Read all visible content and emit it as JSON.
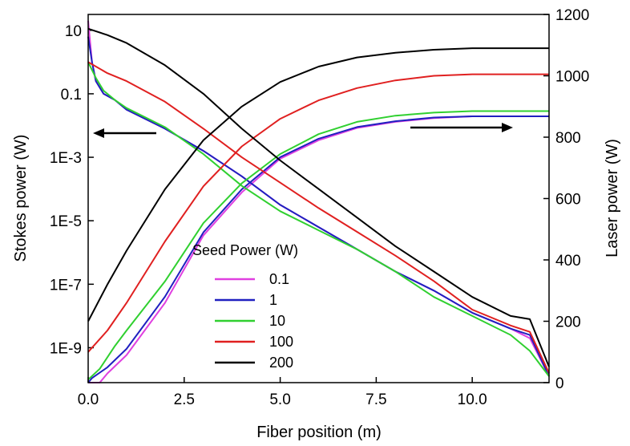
{
  "chart_data": {
    "type": "line",
    "xlabel": "Fiber position (m)",
    "ylabel_left": "Stokes power (W)",
    "ylabel_right": "Laser power (W)",
    "xlim": [
      0,
      12
    ],
    "xticks": [
      0,
      2.5,
      5,
      7.5,
      10
    ],
    "xtick_labels": [
      "0.0",
      "2.5",
      "5.0",
      "7.5",
      "10.0"
    ],
    "ylim_left_log10": [
      -10.1,
      1.5
    ],
    "yticks_left_log10": [
      1,
      -1,
      -3,
      -5,
      -7,
      -9
    ],
    "ytick_labels_left": [
      "10",
      "0.1",
      "1E-3",
      "1E-5",
      "1E-7",
      "1E-9"
    ],
    "ylim_right": [
      0,
      1200
    ],
    "yticks_right": [
      0,
      200,
      400,
      600,
      800,
      1000,
      1200
    ],
    "ytick_labels_right": [
      "0",
      "200",
      "400",
      "600",
      "800",
      "1000",
      "1200"
    ],
    "legend_title": "Seed Power (W)",
    "legend_position": "center-left",
    "annotations": [
      "left arrow indicates Stokes power axis",
      "right arrow indicates Laser power axis"
    ],
    "series": [
      {
        "name": "0.1",
        "color": "#e040e0",
        "stokes_log10": [
          [
            0,
            1.3
          ],
          [
            0.1,
            0
          ],
          [
            0.2,
            -0.6
          ],
          [
            0.4,
            -1.0
          ],
          [
            0.7,
            -1.2
          ],
          [
            1,
            -1.5
          ],
          [
            2,
            -2.1
          ],
          [
            3,
            -2.8
          ],
          [
            4,
            -3.6
          ],
          [
            5,
            -4.5
          ],
          [
            6,
            -5.2
          ],
          [
            7,
            -5.9
          ],
          [
            8,
            -6.6
          ],
          [
            9,
            -7.2
          ],
          [
            10,
            -7.9
          ],
          [
            11,
            -8.4
          ],
          [
            11.5,
            -8.7
          ],
          [
            12,
            -9.9
          ]
        ],
        "laser_W": [
          [
            0,
            0
          ],
          [
            0.3,
            0
          ],
          [
            0.5,
            30
          ],
          [
            1,
            90
          ],
          [
            2,
            260
          ],
          [
            3,
            480
          ],
          [
            4,
            620
          ],
          [
            5,
            730
          ],
          [
            6,
            790
          ],
          [
            7,
            830
          ],
          [
            8,
            850
          ],
          [
            9,
            862
          ],
          [
            10,
            868
          ],
          [
            12,
            868
          ]
        ]
      },
      {
        "name": "1",
        "color": "#2020c0",
        "stokes_log10": [
          [
            0,
            0.8
          ],
          [
            0.1,
            0
          ],
          [
            0.2,
            -0.6
          ],
          [
            0.4,
            -1.0
          ],
          [
            0.7,
            -1.2
          ],
          [
            1,
            -1.5
          ],
          [
            2,
            -2.1
          ],
          [
            3,
            -2.8
          ],
          [
            4,
            -3.6
          ],
          [
            5,
            -4.5
          ],
          [
            6,
            -5.2
          ],
          [
            7,
            -5.9
          ],
          [
            8,
            -6.6
          ],
          [
            9,
            -7.2
          ],
          [
            10,
            -7.9
          ],
          [
            11,
            -8.4
          ],
          [
            11.5,
            -8.6
          ],
          [
            12,
            -9.9
          ]
        ],
        "laser_W": [
          [
            0,
            0
          ],
          [
            0.1,
            15
          ],
          [
            0.5,
            50
          ],
          [
            1,
            110
          ],
          [
            2,
            280
          ],
          [
            3,
            490
          ],
          [
            4,
            630
          ],
          [
            5,
            735
          ],
          [
            6,
            795
          ],
          [
            7,
            833
          ],
          [
            8,
            852
          ],
          [
            9,
            864
          ],
          [
            10,
            868
          ],
          [
            12,
            868
          ]
        ]
      },
      {
        "name": "10",
        "color": "#30d030",
        "stokes_log10": [
          [
            0,
            0
          ],
          [
            0.2,
            -0.5
          ],
          [
            0.4,
            -0.9
          ],
          [
            0.7,
            -1.2
          ],
          [
            1,
            -1.45
          ],
          [
            2,
            -2.05
          ],
          [
            3,
            -2.9
          ],
          [
            4,
            -3.9
          ],
          [
            5,
            -4.7
          ],
          [
            6,
            -5.3
          ],
          [
            7,
            -5.9
          ],
          [
            8,
            -6.6
          ],
          [
            9,
            -7.4
          ],
          [
            10,
            -8.0
          ],
          [
            11,
            -8.6
          ],
          [
            11.5,
            -9.1
          ],
          [
            12,
            -9.9
          ]
        ],
        "laser_W": [
          [
            0,
            10
          ],
          [
            0.3,
            45
          ],
          [
            0.7,
            120
          ],
          [
            1,
            170
          ],
          [
            2,
            330
          ],
          [
            3,
            520
          ],
          [
            4,
            650
          ],
          [
            5,
            745
          ],
          [
            6,
            810
          ],
          [
            7,
            850
          ],
          [
            8,
            870
          ],
          [
            9,
            880
          ],
          [
            10,
            885
          ],
          [
            12,
            885
          ]
        ]
      },
      {
        "name": "100",
        "color": "#e02020",
        "stokes_log10": [
          [
            0,
            0
          ],
          [
            0.5,
            -0.35
          ],
          [
            1,
            -0.6
          ],
          [
            2,
            -1.25
          ],
          [
            3,
            -2.1
          ],
          [
            4,
            -3.0
          ],
          [
            5,
            -3.8
          ],
          [
            6,
            -4.6
          ],
          [
            7,
            -5.35
          ],
          [
            8,
            -6.1
          ],
          [
            9,
            -6.9
          ],
          [
            10,
            -7.8
          ],
          [
            11,
            -8.3
          ],
          [
            11.5,
            -8.5
          ],
          [
            12,
            -9.8
          ]
        ],
        "laser_W": [
          [
            0,
            100
          ],
          [
            0.5,
            170
          ],
          [
            1,
            260
          ],
          [
            2,
            460
          ],
          [
            3,
            640
          ],
          [
            4,
            770
          ],
          [
            5,
            860
          ],
          [
            6,
            920
          ],
          [
            7,
            960
          ],
          [
            8,
            985
          ],
          [
            9,
            1000
          ],
          [
            10,
            1005
          ],
          [
            12,
            1005
          ]
        ]
      },
      {
        "name": "200",
        "color": "#000000",
        "stokes_log10": [
          [
            0,
            1.05
          ],
          [
            0.5,
            0.85
          ],
          [
            1,
            0.6
          ],
          [
            2,
            -0.1
          ],
          [
            3,
            -1.0
          ],
          [
            4,
            -2.1
          ],
          [
            5,
            -3.1
          ],
          [
            6,
            -4.0
          ],
          [
            7,
            -4.9
          ],
          [
            8,
            -5.8
          ],
          [
            9,
            -6.6
          ],
          [
            10,
            -7.4
          ],
          [
            11,
            -8.0
          ],
          [
            11.5,
            -8.1
          ],
          [
            12,
            -9.6
          ]
        ],
        "laser_W": [
          [
            0,
            200
          ],
          [
            0.5,
            320
          ],
          [
            1,
            430
          ],
          [
            2,
            630
          ],
          [
            3,
            790
          ],
          [
            4,
            900
          ],
          [
            5,
            980
          ],
          [
            6,
            1030
          ],
          [
            7,
            1060
          ],
          [
            8,
            1075
          ],
          [
            9,
            1085
          ],
          [
            10,
            1090
          ],
          [
            12,
            1090
          ]
        ]
      }
    ]
  }
}
